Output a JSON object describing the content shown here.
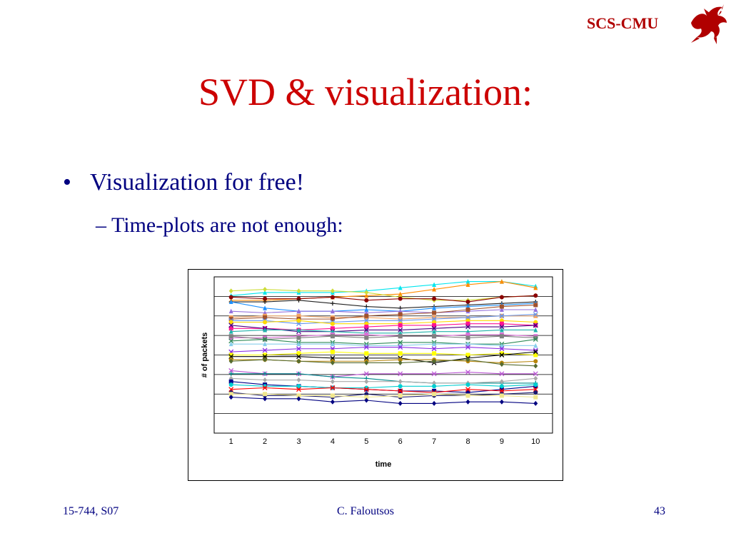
{
  "header": {
    "logo_text": "SCS-CMU",
    "logo_icon": "dragon-icon",
    "logo_color": "#b00000"
  },
  "slide": {
    "title": "SVD & visualization:",
    "bullet": "Visualization for free!",
    "sub_bullet": "– Time-plots are not enough:"
  },
  "footer": {
    "course": "15-744, S07",
    "author": "C. Faloutsos",
    "page": "43"
  },
  "chart_data": {
    "type": "line",
    "xlabel": "time",
    "ylabel": "# of packets",
    "x": [
      1,
      2,
      3,
      4,
      5,
      6,
      7,
      8,
      9,
      10
    ],
    "ylim": [
      0,
      100
    ],
    "grid": true,
    "legend": "none",
    "series": [
      {
        "color": "#00e5ee",
        "marker": "triangle",
        "values": [
          88,
          90,
          90,
          90,
          91,
          93,
          95,
          97,
          97,
          94
        ]
      },
      {
        "color": "#ff8c00",
        "marker": "triangle",
        "values": [
          85,
          85,
          86,
          87,
          88,
          89,
          92,
          95,
          97,
          93
        ]
      },
      {
        "color": "#cddc39",
        "marker": "diamond",
        "values": [
          91,
          92,
          91,
          91,
          90,
          87,
          85,
          85,
          87,
          88
        ]
      },
      {
        "color": "#8b0000",
        "marker": "circle",
        "values": [
          87,
          86,
          86,
          87,
          85,
          86,
          86,
          84,
          87,
          88
        ]
      },
      {
        "color": "#222222",
        "marker": "plus",
        "values": [
          84,
          84,
          85,
          83,
          81,
          80,
          81,
          82,
          83,
          84
        ]
      },
      {
        "color": "#1e90ff",
        "marker": "triangle",
        "values": [
          84,
          80,
          78,
          78,
          79,
          78,
          80,
          81,
          82,
          83
        ]
      },
      {
        "color": "#9370db",
        "marker": "triangle",
        "values": [
          78,
          77,
          78,
          78,
          77,
          78,
          77,
          78,
          79,
          79
        ]
      },
      {
        "color": "#f4a460",
        "marker": "square",
        "values": [
          74,
          75,
          75,
          74,
          74,
          73,
          74,
          74,
          75,
          75
        ]
      },
      {
        "color": "#a0522d",
        "marker": "square",
        "values": [
          73,
          74,
          73,
          73,
          75,
          76,
          77,
          79,
          81,
          82
        ]
      },
      {
        "color": "#6495ed",
        "marker": "x",
        "values": [
          72,
          72,
          70,
          71,
          72,
          72,
          73,
          74,
          75,
          76
        ]
      },
      {
        "color": "#ffd700",
        "marker": "circle",
        "values": [
          71,
          71,
          72,
          70,
          70,
          70,
          71,
          72,
          72,
          71
        ]
      },
      {
        "color": "#ff1493",
        "marker": "square",
        "values": [
          67,
          67,
          66,
          67,
          68,
          69,
          69,
          70,
          70,
          69
        ]
      },
      {
        "color": "#4b0082",
        "marker": "x",
        "values": [
          69,
          67,
          65,
          65,
          66,
          66,
          67,
          68,
          68,
          69
        ]
      },
      {
        "color": "#20b2aa",
        "marker": "triangle",
        "values": [
          65,
          66,
          66,
          65,
          64,
          64,
          65,
          65,
          66,
          66
        ]
      },
      {
        "color": "#da70d6",
        "marker": "square",
        "values": [
          61,
          61,
          62,
          63,
          63,
          62,
          62,
          63,
          63,
          62
        ]
      },
      {
        "color": "#808080",
        "marker": "square",
        "values": [
          62,
          60,
          61,
          62,
          61,
          62,
          62,
          61,
          62,
          61
        ]
      },
      {
        "color": "#2e8b57",
        "marker": "x",
        "values": [
          59,
          60,
          58,
          58,
          57,
          58,
          58,
          57,
          57,
          60
        ]
      },
      {
        "color": "#87ceeb",
        "marker": "triangle",
        "values": [
          57,
          57,
          57,
          57,
          56,
          56,
          57,
          57,
          56,
          56
        ]
      },
      {
        "color": "#8a2be2",
        "marker": "x",
        "values": [
          52,
          53,
          54,
          54,
          55,
          55,
          54,
          55,
          54,
          53
        ]
      },
      {
        "color": "#ffff00",
        "marker": "square",
        "values": [
          50,
          50,
          51,
          52,
          51,
          51,
          51,
          50,
          51,
          50
        ]
      },
      {
        "color": "#000000",
        "marker": "x",
        "values": [
          49,
          49,
          49,
          48,
          48,
          48,
          45,
          48,
          50,
          52
        ]
      },
      {
        "color": "#b8860b",
        "marker": "circle",
        "values": [
          47,
          47,
          46,
          46,
          46,
          47,
          47,
          46,
          45,
          46
        ]
      },
      {
        "color": "#556b2f",
        "marker": "diamond",
        "values": [
          46,
          47,
          46,
          45,
          45,
          45,
          46,
          47,
          44,
          43
        ]
      },
      {
        "color": "#ba55d3",
        "marker": "x",
        "values": [
          40,
          38,
          38,
          36,
          38,
          38,
          38,
          39,
          38,
          38
        ]
      },
      {
        "color": "#008b8b",
        "marker": "plus",
        "values": [
          38,
          38,
          38,
          36,
          35,
          33,
          32,
          32,
          32,
          32
        ]
      },
      {
        "color": "#a9a9a9",
        "marker": "diamond",
        "values": [
          35,
          34,
          34,
          33,
          33,
          33,
          32,
          32,
          33,
          35
        ]
      },
      {
        "color": "#00008b",
        "marker": "square",
        "values": [
          33,
          31,
          30,
          29,
          28,
          27,
          27,
          26,
          28,
          30
        ]
      },
      {
        "color": "#00ced1",
        "marker": "circle",
        "values": [
          31,
          30,
          30,
          29,
          29,
          30,
          30,
          31,
          30,
          31
        ]
      },
      {
        "color": "#ff0000",
        "marker": "x",
        "values": [
          28,
          29,
          28,
          29,
          28,
          27,
          26,
          28,
          27,
          28
        ]
      },
      {
        "color": "#191970",
        "marker": "circle",
        "values": [
          26,
          24,
          24,
          23,
          25,
          23,
          24,
          24,
          25,
          26
        ]
      },
      {
        "color": "#f0e68c",
        "marker": "square",
        "values": [
          25,
          25,
          24,
          24,
          23,
          24,
          25,
          24,
          24,
          23
        ]
      },
      {
        "color": "#000080",
        "marker": "diamond",
        "values": [
          23,
          22,
          22,
          20,
          21,
          19,
          19,
          20,
          20,
          19
        ]
      }
    ]
  }
}
